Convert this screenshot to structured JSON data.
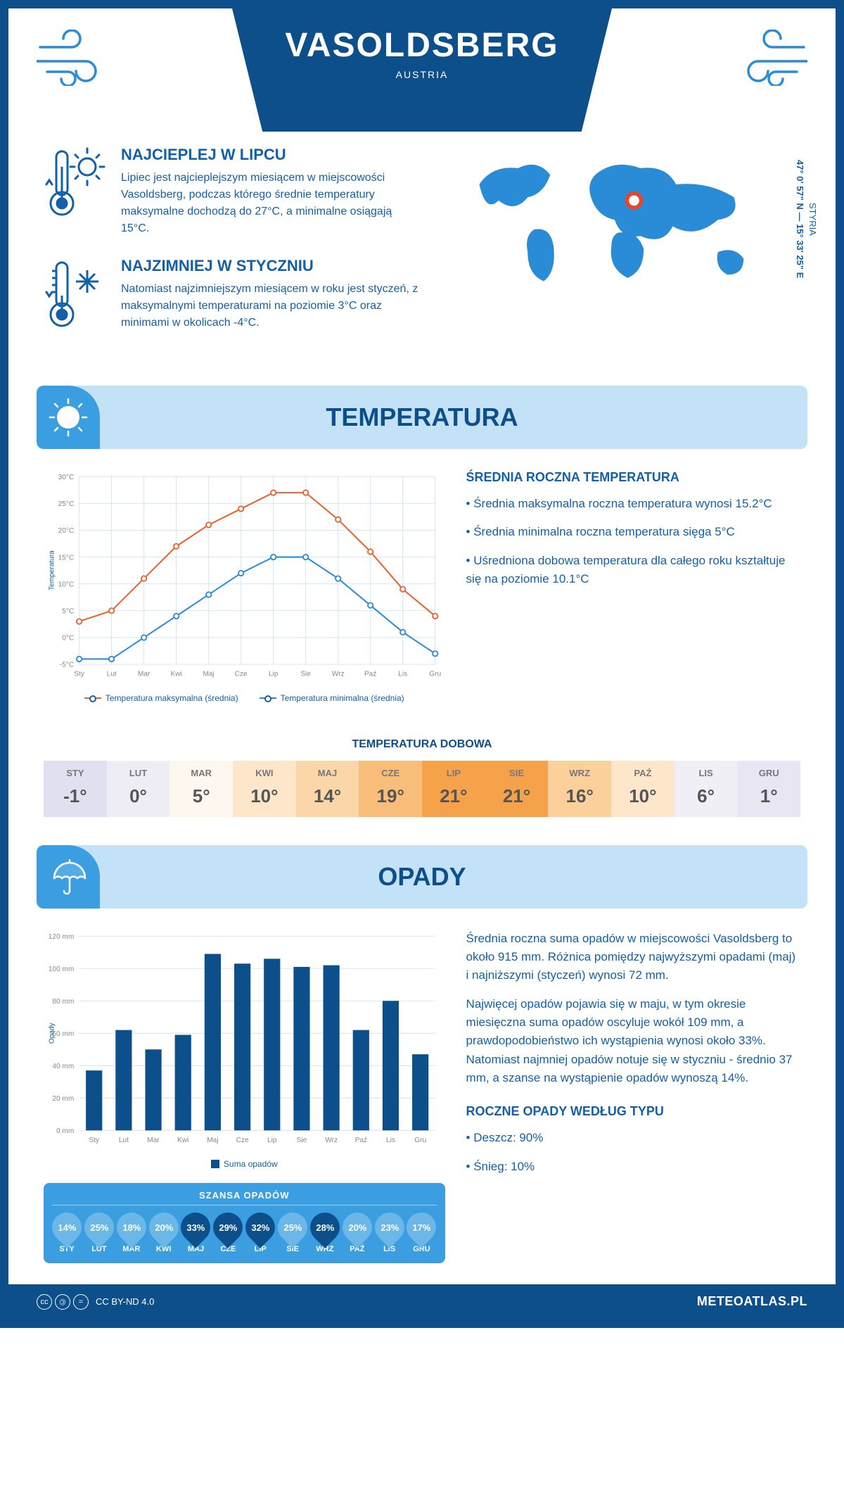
{
  "header": {
    "city": "VASOLDSBERG",
    "country": "AUSTRIA"
  },
  "coords": {
    "region": "STYRIA",
    "lat": "47° 0' 57\" N",
    "lon": "15° 33' 25\" E"
  },
  "facts": {
    "hot": {
      "title": "NAJCIEPLEJ W LIPCU",
      "text": "Lipiec jest najcieplejszym miesiącem w miejscowości Vasoldsberg, podczas którego średnie temperatury maksymalne dochodzą do 27°C, a minimalne osiągają 15°C."
    },
    "cold": {
      "title": "NAJZIMNIEJ W STYCZNIU",
      "text": "Natomiast najzimniejszym miesiącem w roku jest styczeń, z maksymalnymi temperaturami na poziomie 3°C oraz minimami w okolicach -4°C."
    }
  },
  "sections": {
    "temp": "TEMPERATURA",
    "rain": "OPADY"
  },
  "months": [
    "Sty",
    "Lut",
    "Mar",
    "Kwi",
    "Maj",
    "Cze",
    "Lip",
    "Sie",
    "Wrz",
    "Paź",
    "Lis",
    "Gru"
  ],
  "months_upper": [
    "STY",
    "LUT",
    "MAR",
    "KWI",
    "MAJ",
    "CZE",
    "LIP",
    "SIE",
    "WRZ",
    "PAŹ",
    "LIS",
    "GRU"
  ],
  "temp_chart": {
    "ylabel": "Temperatura",
    "ymin": -5,
    "ymax": 30,
    "ystep": 5,
    "max_series": {
      "color": "#e8622b",
      "label": "Temperatura maksymalna (średnia)",
      "values": [
        3,
        5,
        11,
        17,
        21,
        24,
        27,
        27,
        22,
        16,
        9,
        4
      ]
    },
    "min_series": {
      "color": "#2a8cd6",
      "label": "Temperatura minimalna (średnia)",
      "values": [
        -4,
        -4,
        0,
        4,
        8,
        12,
        15,
        15,
        11,
        6,
        1,
        -3
      ]
    }
  },
  "temp_side": {
    "title": "ŚREDNIA ROCZNA TEMPERATURA",
    "bullets": [
      "Średnia maksymalna roczna temperatura wynosi 15.2°C",
      "Średnia minimalna roczna temperatura sięga 5°C",
      "Uśredniona dobowa temperatura dla całego roku kształtuje się na poziomie 10.1°C"
    ]
  },
  "daily_strip": {
    "title": "TEMPERATURA DOBOWA",
    "values": [
      "-1°",
      "0°",
      "5°",
      "10°",
      "14°",
      "19°",
      "21°",
      "21°",
      "16°",
      "10°",
      "6°",
      "1°"
    ],
    "colors": [
      "#e1e0f0",
      "#eeedf5",
      "#fdf7ef",
      "#fde6c9",
      "#fbd6a8",
      "#f9bd7a",
      "#f6a24a",
      "#f6a24a",
      "#fbd09b",
      "#fde6c9",
      "#f0eff6",
      "#e7e6f2"
    ]
  },
  "rain_chart": {
    "ylabel": "Opady",
    "ymin": 0,
    "ymax": 120,
    "ystep": 20,
    "color": "#0d4f8b",
    "legend": "Suma opadów",
    "values": [
      37,
      62,
      50,
      59,
      109,
      103,
      106,
      101,
      102,
      62,
      80,
      47
    ]
  },
  "rain_side": {
    "p1": "Średnia roczna suma opadów w miejscowości Vasoldsberg to około 915 mm. Różnica pomiędzy najwyższymi opadami (maj) i najniższymi (styczeń) wynosi 72 mm.",
    "p2": "Najwięcej opadów pojawia się w maju, w tym okresie miesięczna suma opadów oscyluje wokół 109 mm, a prawdopodobieństwo ich wystąpienia wynosi około 33%. Natomiast najmniej opadów notuje się w styczniu - średnio 37 mm, a szanse na wystąpienie opadów wynoszą 14%.",
    "type_title": "ROCZNE OPADY WEDŁUG TYPU",
    "type_bullets": [
      "Deszcz: 90%",
      "Śnieg: 10%"
    ]
  },
  "chance": {
    "title": "SZANSA OPADÓW",
    "values": [
      14,
      25,
      18,
      20,
      33,
      29,
      32,
      25,
      28,
      20,
      23,
      17
    ],
    "light": "#6bb7e8",
    "dark": "#0d4f8b",
    "dark_threshold": 26
  },
  "footer": {
    "license": "CC BY-ND 4.0",
    "site": "METEOATLAS.PL"
  }
}
